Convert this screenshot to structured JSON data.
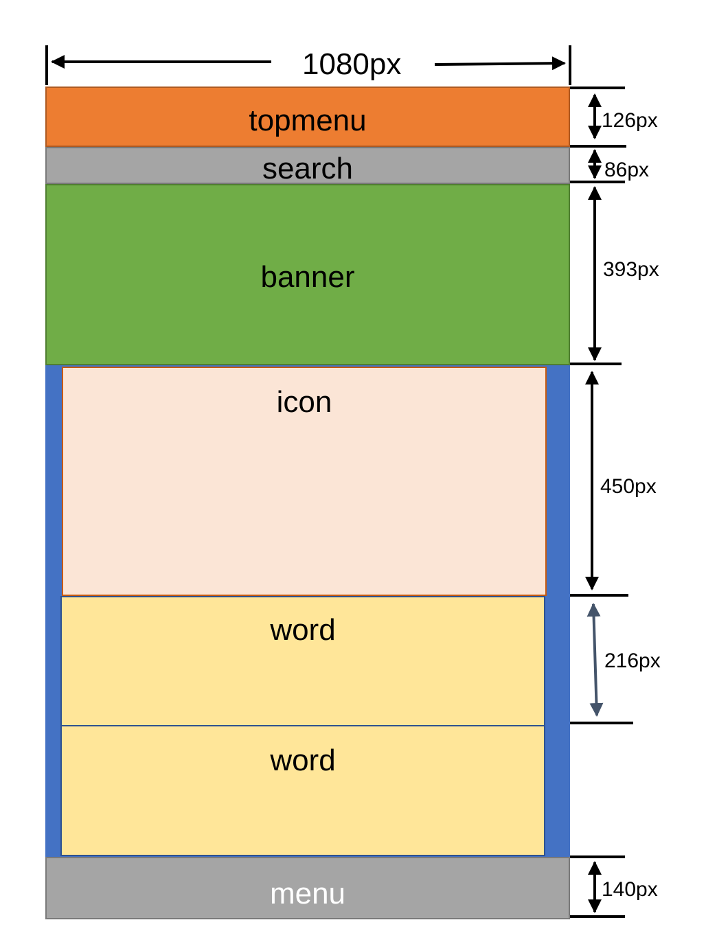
{
  "width_label": "1080px",
  "blocks": {
    "topmenu": {
      "label": "topmenu",
      "color": "#ED7D31"
    },
    "search": {
      "label": "search",
      "color": "#A5A5A5"
    },
    "banner": {
      "label": "banner",
      "color": "#70AD47"
    },
    "icon": {
      "label": "icon",
      "color": "#FBE5D6"
    },
    "word1": {
      "label": "word",
      "color": "#FFE699"
    },
    "word2": {
      "label": "word",
      "color": "#FFE699"
    },
    "menu": {
      "label": "menu",
      "color": "#A5A5A5"
    },
    "container": {
      "color": "#4472C4"
    }
  },
  "dimensions": {
    "topmenu": "126px",
    "search": "86px",
    "banner": "393px",
    "icon": "450px",
    "word": "216px",
    "menu": "140px"
  }
}
